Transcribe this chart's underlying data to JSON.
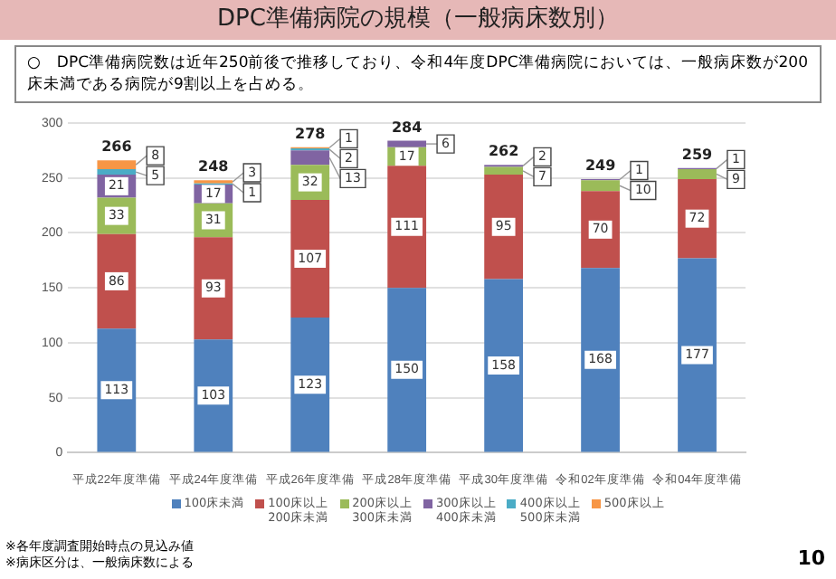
{
  "chart_data": {
    "type": "bar",
    "stacked": true,
    "title": "DPC準備病院の規模（一般病床数別）",
    "subtitle": "○　DPC準備病院数は近年250前後で推移しており、令和4年度DPC準備病院においては、一般病床数が200床未満である病院が9割以上を占める。",
    "categories": [
      "平成22年度準備",
      "平成24年度準備",
      "平成26年度準備",
      "平成28年度準備",
      "平成30年度準備",
      "令和02年度準備",
      "令和04年度準備"
    ],
    "series": [
      {
        "name": "100床未満",
        "color": "#4f81bd",
        "values": [
          113,
          103,
          123,
          150,
          158,
          168,
          177
        ]
      },
      {
        "name": "100床以上\n200床未満",
        "color": "#c0504d",
        "values": [
          86,
          93,
          107,
          111,
          95,
          70,
          72
        ]
      },
      {
        "name": "200床以上\n300床未満",
        "color": "#9bbb59",
        "values": [
          33,
          31,
          32,
          17,
          7,
          10,
          9
        ]
      },
      {
        "name": "300床以上\n400床未満",
        "color": "#8064a2",
        "values": [
          21,
          17,
          13,
          6,
          2,
          1,
          1
        ]
      },
      {
        "name": "400床以上\n500床未満",
        "color": "#4bacc6",
        "values": [
          5,
          1,
          2,
          null,
          null,
          null,
          null
        ]
      },
      {
        "name": "500床以上",
        "color": "#f79646",
        "values": [
          8,
          3,
          1,
          null,
          null,
          null,
          null
        ]
      }
    ],
    "totals": [
      "266",
      "248",
      "278",
      "284",
      "262",
      "249",
      "259"
    ],
    "data_labels": true,
    "ylim": [
      0,
      300
    ],
    "yticks": [
      0,
      50,
      100,
      150,
      200,
      250,
      300
    ],
    "grid": "y",
    "legend": "bottom",
    "annotations": [
      "※各年度調査開始時点の見込み値",
      "※病床区分は、一般病床数による",
      "10"
    ]
  }
}
